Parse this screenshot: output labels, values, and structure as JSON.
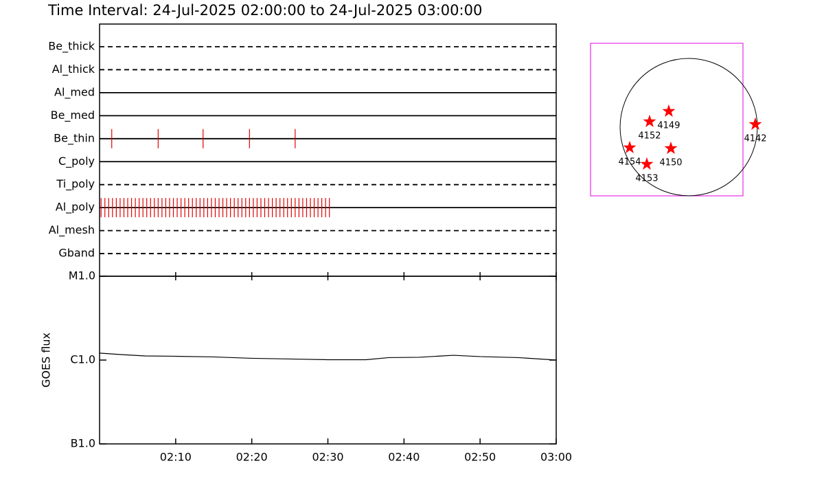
{
  "chart_data": [
    {
      "type": "events",
      "title": "Time Interval: 24-Jul-2025 02:00:00 to 24-Jul-2025 03:00:00",
      "xlim": [
        0,
        60
      ],
      "event_color": "#e00000",
      "filters": [
        {
          "name": "Be_thick",
          "style": "dashed",
          "events": []
        },
        {
          "name": "Al_thick",
          "style": "dashed",
          "events": []
        },
        {
          "name": "Al_med",
          "style": "solid",
          "events": []
        },
        {
          "name": "Be_med",
          "style": "solid",
          "events": []
        },
        {
          "name": "Be_thin",
          "style": "solid",
          "events": [
            1.6,
            7.7,
            13.6,
            19.7,
            25.7
          ]
        },
        {
          "name": "C_poly",
          "style": "solid",
          "events": []
        },
        {
          "name": "Ti_poly",
          "style": "dashed",
          "events": []
        },
        {
          "name": "Al_poly",
          "style": "solid",
          "events": [
            0.2,
            0.7,
            1.2,
            1.7,
            2.2,
            2.7,
            3.2,
            3.7,
            4.2,
            4.7,
            5.2,
            5.7,
            6.2,
            6.7,
            7.2,
            7.7,
            8.2,
            8.7,
            9.2,
            9.7,
            10.2,
            10.7,
            11.2,
            11.7,
            12.2,
            12.7,
            13.2,
            13.7,
            14.2,
            14.7,
            15.2,
            15.7,
            16.2,
            16.7,
            17.2,
            17.7,
            18.2,
            18.7,
            19.2,
            19.7,
            20.2,
            20.7,
            21.2,
            21.7,
            22.2,
            22.7,
            23.2,
            23.7,
            24.2,
            24.7,
            25.2,
            25.7,
            26.2,
            26.7,
            27.2,
            27.7,
            28.2,
            28.7,
            29.2,
            29.7,
            30.2
          ]
        },
        {
          "name": "Al_mesh",
          "style": "dashed",
          "events": []
        },
        {
          "name": "Gband",
          "style": "dashed",
          "events": []
        }
      ]
    },
    {
      "type": "line",
      "ylabel": "GOES flux",
      "log": true,
      "color": "#000000",
      "xlim": [
        0,
        60
      ],
      "ylim": [
        1e-07,
        1e-05
      ],
      "xticks": [
        {
          "value": 10,
          "label": "02:10"
        },
        {
          "value": 20,
          "label": "02:20"
        },
        {
          "value": 30,
          "label": "02:30"
        },
        {
          "value": 40,
          "label": "02:40"
        },
        {
          "value": 50,
          "label": "02:50"
        },
        {
          "value": 60,
          "label": "03:00"
        }
      ],
      "yticks": [
        {
          "value": 1e-07,
          "label": "B1.0"
        },
        {
          "value": 1e-06,
          "label": "C1.0"
        },
        {
          "value": 1e-05,
          "label": "M1.0"
        }
      ],
      "x": [
        0,
        3,
        6,
        10,
        15,
        20,
        25,
        30,
        35,
        38,
        42,
        45,
        46.5,
        50,
        55,
        60
      ],
      "values": [
        1.21e-06,
        1.16e-06,
        1.12e-06,
        1.11e-06,
        1.09e-06,
        1.05e-06,
        1.03e-06,
        1.01e-06,
        1.01e-06,
        1.07e-06,
        1.08e-06,
        1.12e-06,
        1.14e-06,
        1.1e-06,
        1.07e-06,
        1e-06
      ]
    },
    {
      "type": "map",
      "xlim": [
        -1359,
        751
      ],
      "ylim": [
        -951,
        1159
      ],
      "solar_radius": 950,
      "frame_color": "#e000e0",
      "star_color": "#ff0000",
      "regions": [
        {
          "name": "4149",
          "x": -276,
          "y": 219
        },
        {
          "name": "4152",
          "x": -542,
          "y": 76
        },
        {
          "name": "4142",
          "x": 922,
          "y": 38
        },
        {
          "name": "4154",
          "x": -817,
          "y": -285
        },
        {
          "name": "4150",
          "x": -247,
          "y": -295
        },
        {
          "name": "4153",
          "x": -580,
          "y": -513
        }
      ]
    }
  ]
}
